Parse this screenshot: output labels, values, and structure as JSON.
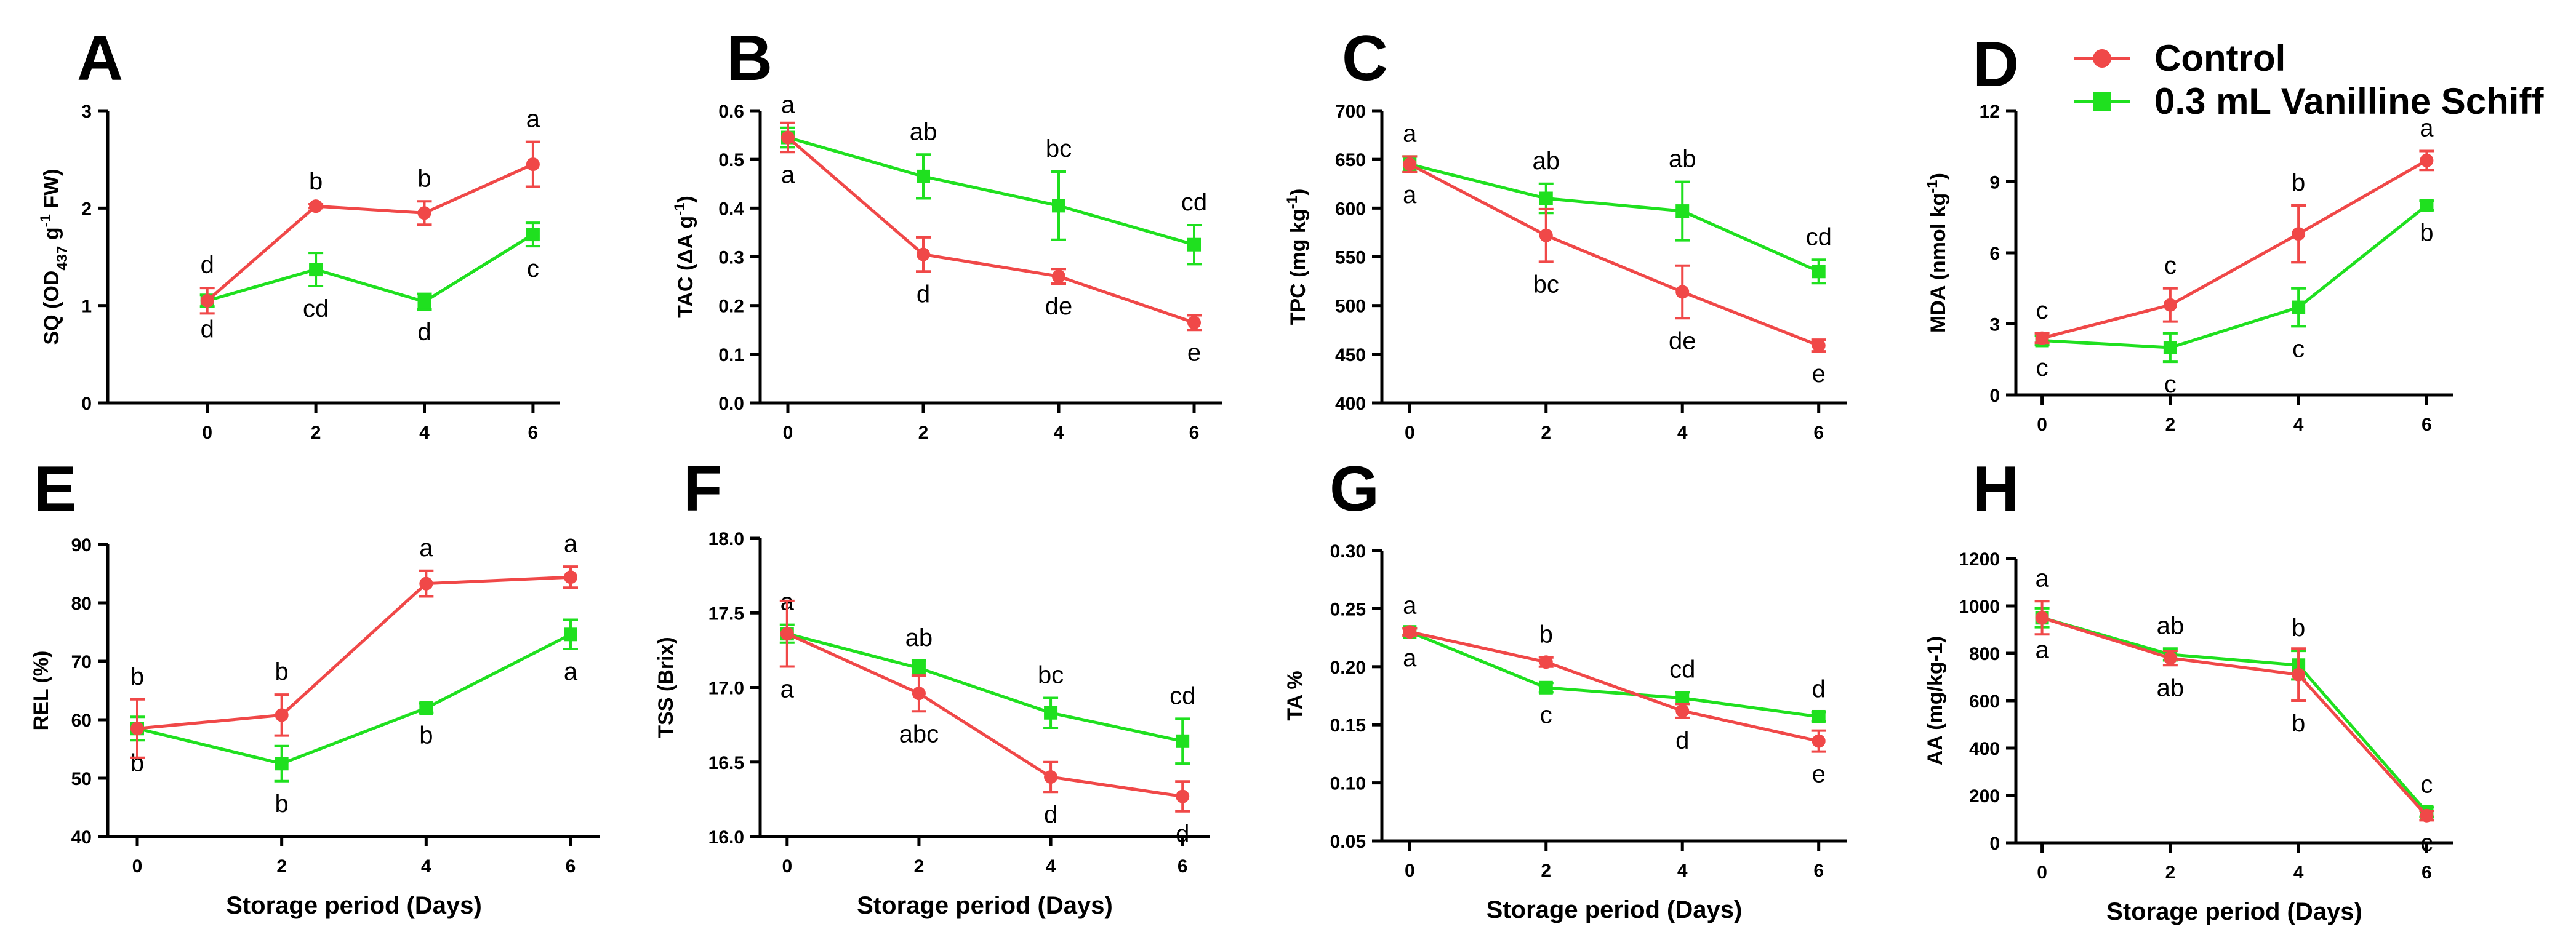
{
  "colors": {
    "control": "#f04848",
    "treatment": "#1fe01f"
  },
  "legend": {
    "control": "Control",
    "treatment": "0.3 mL Vanilline Schiff"
  },
  "x_axis_label": "Storage period (Days)",
  "chart_data": [
    {
      "panel": "A",
      "type": "line",
      "ylabel_html": "SQ (OD<tspan baseline-shift=\"sub\" font-size=\"24\">437</tspan> g<tspan baseline-shift=\"super\" font-size=\"24\">-1</tspan> FW)",
      "x": [
        0,
        2,
        4,
        6
      ],
      "ylim": [
        0,
        3
      ],
      "yticks": [
        0,
        1,
        2,
        3
      ],
      "yticklabels": [
        "0",
        "1",
        "2",
        "3"
      ],
      "series": [
        {
          "name": "Control",
          "values": [
            1.05,
            2.02,
            1.95,
            2.45
          ],
          "err": [
            0.13,
            0.02,
            0.12,
            0.23
          ],
          "sig": [
            "d",
            "b",
            "b",
            "a"
          ],
          "sig_pos": [
            "above",
            "above",
            "above",
            "above"
          ]
        },
        {
          "name": "0.3 mL Vanilline Schiff",
          "values": [
            1.05,
            1.37,
            1.04,
            1.73
          ],
          "err": [
            0.06,
            0.17,
            0.08,
            0.12
          ],
          "sig": [
            "d",
            "cd",
            "d",
            "c"
          ],
          "sig_pos": [
            "below",
            "below",
            "below",
            "below"
          ]
        }
      ]
    },
    {
      "panel": "B",
      "type": "line",
      "ylabel": "TAC (ΔA g-1)",
      "x": [
        0,
        2,
        4,
        6
      ],
      "ylim": [
        0,
        0.6
      ],
      "yticks": [
        0,
        0.1,
        0.2,
        0.3,
        0.4,
        0.5,
        0.6
      ],
      "yticklabels": [
        "0.0",
        "0.1",
        "0.2",
        "0.3",
        "0.4",
        "0.5",
        "0.6"
      ],
      "series": [
        {
          "name": "Control",
          "values": [
            0.545,
            0.305,
            0.26,
            0.165
          ],
          "err": [
            0.03,
            0.035,
            0.015,
            0.015
          ],
          "sig": [
            "a",
            "d",
            "de",
            "e"
          ],
          "sig_pos": [
            "below",
            "below",
            "below",
            "below"
          ]
        },
        {
          "name": "0.3 mL Vanilline Schiff",
          "values": [
            0.545,
            0.465,
            0.405,
            0.325
          ],
          "err": [
            0.02,
            0.045,
            0.07,
            0.04
          ],
          "sig": [
            "a",
            "ab",
            "bc",
            "cd"
          ],
          "sig_pos": [
            "above",
            "above",
            "above",
            "above"
          ]
        }
      ]
    },
    {
      "panel": "C",
      "type": "line",
      "ylabel": "TPC (mg kg-1)",
      "x": [
        0,
        2,
        4,
        6
      ],
      "ylim": [
        400,
        700
      ],
      "yticks": [
        400,
        450,
        500,
        550,
        600,
        650,
        700
      ],
      "yticklabels": [
        "400",
        "450",
        "500",
        "550",
        "600",
        "650",
        "700"
      ],
      "series": [
        {
          "name": "Control",
          "values": [
            645,
            572,
            514,
            459
          ],
          "err": [
            8,
            27,
            27,
            6
          ],
          "sig": [
            "a",
            "bc",
            "de",
            "e"
          ],
          "sig_pos": [
            "below",
            "below",
            "below",
            "below"
          ]
        },
        {
          "name": "0.3 mL Vanilline Schiff",
          "values": [
            645,
            610,
            597,
            535
          ],
          "err": [
            8,
            15,
            30,
            12
          ],
          "sig": [
            "a",
            "ab",
            "ab",
            "cd"
          ],
          "sig_pos": [
            "above",
            "above",
            "above",
            "above"
          ]
        }
      ]
    },
    {
      "panel": "D",
      "type": "line",
      "ylabel": "MDA (nmol kg-1)",
      "x": [
        0,
        2,
        4,
        6
      ],
      "ylim": [
        0,
        12
      ],
      "yticks": [
        0,
        3,
        6,
        9,
        12
      ],
      "yticklabels": [
        "0",
        "3",
        "6",
        "9",
        "12"
      ],
      "series": [
        {
          "name": "Control",
          "values": [
            2.4,
            3.8,
            6.8,
            9.9
          ],
          "err": [
            0.2,
            0.7,
            1.2,
            0.4
          ],
          "sig": [
            "c",
            "c",
            "b",
            "a"
          ],
          "sig_pos": [
            "above",
            "above",
            "above",
            "above"
          ]
        },
        {
          "name": "0.3 mL Vanilline Schiff",
          "values": [
            2.3,
            2.0,
            3.7,
            8.0
          ],
          "err": [
            0.2,
            0.6,
            0.8,
            0.2
          ],
          "sig": [
            "c",
            "c",
            "c",
            "b"
          ],
          "sig_pos": [
            "below",
            "below",
            "below",
            "below"
          ]
        }
      ]
    },
    {
      "panel": "E",
      "type": "line",
      "ylabel": "REL (%)",
      "x": [
        0,
        2,
        4,
        6
      ],
      "ylim": [
        40,
        90
      ],
      "yticks": [
        40,
        50,
        60,
        70,
        80,
        90
      ],
      "yticklabels": [
        "40",
        "50",
        "60",
        "70",
        "80",
        "90"
      ],
      "series": [
        {
          "name": "Control",
          "values": [
            58.5,
            60.8,
            83.3,
            84.4
          ],
          "err": [
            5,
            3.5,
            2.2,
            1.8
          ],
          "sig": [
            "b",
            "b",
            "a",
            "a"
          ],
          "sig_pos": [
            "above",
            "above",
            "above",
            "above"
          ]
        },
        {
          "name": "0.3 mL Vanilline Schiff",
          "values": [
            58.5,
            52.5,
            62,
            74.6
          ],
          "err": [
            2,
            3,
            0.8,
            2.5
          ],
          "sig": [
            "b",
            "b",
            "b",
            "a"
          ],
          "sig_pos": [
            "below",
            "below",
            "below",
            "below"
          ]
        }
      ]
    },
    {
      "panel": "F",
      "type": "line",
      "ylabel": "TSS (Brix)",
      "x": [
        0,
        2,
        4,
        6
      ],
      "ylim": [
        16.0,
        18.0
      ],
      "yticks": [
        16.0,
        16.5,
        17.0,
        17.5,
        18.0
      ],
      "yticklabels": [
        "16.0",
        "16.5",
        "17.0",
        "17.5",
        "18.0"
      ],
      "series": [
        {
          "name": "Control",
          "values": [
            17.36,
            16.96,
            16.4,
            16.27
          ],
          "err": [
            0.22,
            0.12,
            0.1,
            0.1
          ],
          "sig": [
            "a",
            "abc",
            "d",
            "d"
          ],
          "sig_pos": [
            "below",
            "below",
            "below",
            "below"
          ]
        },
        {
          "name": "0.3 mL Vanilline Schiff",
          "values": [
            17.36,
            17.13,
            16.83,
            16.64
          ],
          "err": [
            0.06,
            0.05,
            0.1,
            0.15
          ],
          "sig": [
            "a",
            "ab",
            "bc",
            "cd"
          ],
          "sig_pos": [
            "above",
            "above",
            "above",
            "above"
          ]
        }
      ]
    },
    {
      "panel": "G",
      "type": "line",
      "ylabel": "TA %",
      "x": [
        0,
        2,
        4,
        6
      ],
      "ylim": [
        0.05,
        0.3
      ],
      "yticks": [
        0.05,
        0.1,
        0.15,
        0.2,
        0.25,
        0.3
      ],
      "yticklabels": [
        "0.05",
        "0.10",
        "0.15",
        "0.20",
        "0.25",
        "0.30"
      ],
      "series": [
        {
          "name": "Control",
          "values": [
            0.23,
            0.204,
            0.162,
            0.136
          ],
          "err": [
            0.003,
            0.004,
            0.006,
            0.009
          ],
          "sig": [
            "a",
            "b",
            "d",
            "e"
          ],
          "sig_pos": [
            "above",
            "above",
            "below",
            "below"
          ]
        },
        {
          "name": "0.3 mL Vanilline Schiff",
          "values": [
            0.23,
            0.182,
            0.173,
            0.157
          ],
          "err": [
            0.003,
            0.004,
            0.005,
            0.004
          ],
          "sig": [
            "a",
            "c",
            "cd",
            "d"
          ],
          "sig_pos": [
            "below",
            "below",
            "above",
            "above"
          ]
        }
      ]
    },
    {
      "panel": "H",
      "type": "line",
      "ylabel": "AA (mg/kg-1)",
      "x": [
        0,
        2,
        4,
        6
      ],
      "ylim": [
        0,
        1200
      ],
      "yticks": [
        0,
        200,
        400,
        600,
        800,
        1000,
        1200
      ],
      "yticklabels": [
        "0",
        "200",
        "400",
        "600",
        "800",
        "1000",
        "1200"
      ],
      "series": [
        {
          "name": "Control",
          "values": [
            950,
            780,
            710,
            115
          ],
          "err": [
            70,
            30,
            110,
            20
          ],
          "sig": [
            "a",
            "ab",
            "b",
            "c"
          ],
          "sig_pos": [
            "above",
            "below",
            "below",
            "below"
          ]
        },
        {
          "name": "0.3 mL Vanilline Schiff",
          "values": [
            950,
            795,
            750,
            130
          ],
          "err": [
            40,
            25,
            60,
            20
          ],
          "sig": [
            "a",
            "ab",
            "b",
            "c"
          ],
          "sig_pos": [
            "below",
            "above",
            "above",
            "above"
          ]
        }
      ]
    }
  ]
}
